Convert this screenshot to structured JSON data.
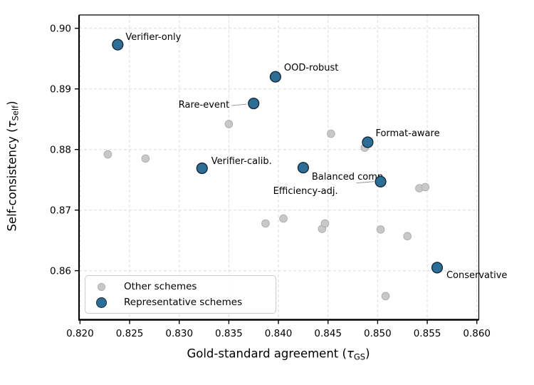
{
  "figure": {
    "background": "#ffffff",
    "title": ""
  },
  "chart_data": {
    "type": "scatter",
    "title": "",
    "xlabel": {
      "prefix": "Gold-standard agreement (",
      "symbol": "τ",
      "subscript": "GS",
      "suffix": ")"
    },
    "ylabel": {
      "prefix": "Self-consistency (",
      "symbol": "τ",
      "subscript": "Self",
      "suffix": ")"
    },
    "xlim": [
      0.8199,
      0.8602
    ],
    "ylim": [
      0.8519,
      0.9022
    ],
    "grid": "dashed",
    "grid_color": "#dedede",
    "spine_color": "#000000",
    "leader_color": "#8f8f8f",
    "x_ticks": [
      {
        "v": 0.82,
        "label": "0.820"
      },
      {
        "v": 0.825,
        "label": "0.825"
      },
      {
        "v": 0.83,
        "label": "0.830"
      },
      {
        "v": 0.835,
        "label": "0.835"
      },
      {
        "v": 0.84,
        "label": "0.840"
      },
      {
        "v": 0.845,
        "label": "0.845"
      },
      {
        "v": 0.85,
        "label": "0.850"
      },
      {
        "v": 0.855,
        "label": "0.855"
      },
      {
        "v": 0.86,
        "label": "0.860"
      }
    ],
    "y_ticks": [
      {
        "v": 0.86,
        "label": "0.86"
      },
      {
        "v": 0.87,
        "label": "0.87"
      },
      {
        "v": 0.88,
        "label": "0.88"
      },
      {
        "v": 0.89,
        "label": "0.89"
      },
      {
        "v": 0.9,
        "label": "0.90"
      }
    ],
    "legend": {
      "position": "lower-left",
      "entries": [
        {
          "label": "Other schemes",
          "color": "#c8c8c8"
        },
        {
          "label": "Representative schemes",
          "color": "#2d6e96"
        }
      ]
    },
    "series": [
      {
        "name": "Other schemes",
        "marker_color": "#c8c8c8",
        "marker_edge": "#afafaf",
        "marker_radius": 5.3,
        "points": [
          {
            "x": 0.8228,
            "y": 0.8792
          },
          {
            "x": 0.8266,
            "y": 0.8785
          },
          {
            "x": 0.835,
            "y": 0.8842
          },
          {
            "x": 0.8387,
            "y": 0.8678
          },
          {
            "x": 0.8405,
            "y": 0.8686
          },
          {
            "x": 0.8444,
            "y": 0.8669
          },
          {
            "x": 0.8447,
            "y": 0.8678
          },
          {
            "x": 0.8453,
            "y": 0.8826
          },
          {
            "x": 0.8487,
            "y": 0.8803
          },
          {
            "x": 0.8503,
            "y": 0.8668
          },
          {
            "x": 0.8508,
            "y": 0.8558
          },
          {
            "x": 0.853,
            "y": 0.8657
          },
          {
            "x": 0.8542,
            "y": 0.8736
          },
          {
            "x": 0.8548,
            "y": 0.8738
          }
        ]
      },
      {
        "name": "Representative schemes",
        "marker_color": "#2d6e96",
        "marker_edge": "#16293a",
        "marker_radius": 7.4,
        "points": [
          {
            "label": "Verifier-only",
            "x": 0.8238,
            "y": 0.8973,
            "anchor": "left",
            "dx": 11,
            "dy": -18
          },
          {
            "label": "Rare-event",
            "x": 0.8375,
            "y": 0.8876,
            "anchor": "right",
            "dx": -34,
            "dy": -5,
            "leader": {
              "dx1": -31,
              "dy1": 3,
              "dx2": -10,
              "dy2": 1
            }
          },
          {
            "label": "OOD-robust",
            "x": 0.8397,
            "y": 0.892,
            "anchor": "left",
            "dx": 12,
            "dy": -20
          },
          {
            "label": "Verifier-calib.",
            "x": 0.8323,
            "y": 0.8769,
            "anchor": "left",
            "dx": 13,
            "dy": -17
          },
          {
            "label": "Format-aware",
            "x": 0.849,
            "y": 0.8812,
            "anchor": "left",
            "dx": 11,
            "dy": -19
          },
          {
            "label": "Balanced comp.",
            "x": 0.8425,
            "y": 0.877,
            "anchor": "left",
            "dx": 12,
            "dy": 6
          },
          {
            "label": "Efficiency-adj.",
            "x": 0.8503,
            "y": 0.8747,
            "anchor": "left",
            "dx": -151,
            "dy": 6,
            "leader": {
              "dx1": -34,
              "dy1": 2,
              "dx2": -9,
              "dy2": 0
            }
          },
          {
            "label": "Conservative",
            "x": 0.856,
            "y": 0.8605,
            "anchor": "left",
            "dx": 13,
            "dy": 4
          }
        ]
      }
    ]
  }
}
